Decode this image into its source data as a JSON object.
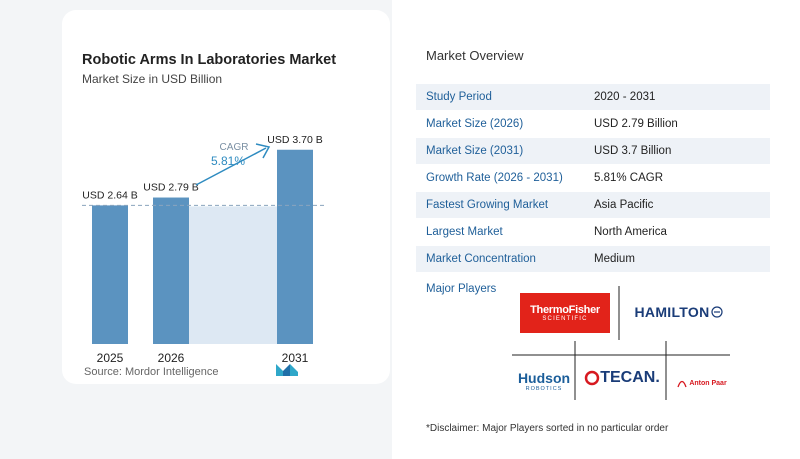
{
  "chart_data": {
    "type": "bar",
    "title": "Robotic Arms In Laboratories Market",
    "subtitle": "Market Size in USD Billion",
    "categories": [
      "2025",
      "2026",
      "2031"
    ],
    "values": [
      2.64,
      2.79,
      3.7
    ],
    "data_labels": [
      "USD 2.64 B",
      "USD 2.79 B",
      "USD 3.70 B"
    ],
    "annotation": {
      "label": "CAGR",
      "value": "5.81%"
    },
    "bar_color": "#5b93c0",
    "accent_color": "#2e8bc0"
  },
  "source": "Source:  Mordor Intelligence",
  "overview": {
    "title": "Market Overview",
    "rows": [
      {
        "label": "Study Period",
        "value": "2020 - 2031"
      },
      {
        "label": "Market Size (2026)",
        "value": "USD 2.79 Billion"
      },
      {
        "label": "Market Size (2031)",
        "value": "USD 3.7 Billion"
      },
      {
        "label": "Growth Rate (2026 - 2031)",
        "value": "5.81% CAGR"
      },
      {
        "label": "Fastest Growing Market",
        "value": "Asia Pacific"
      },
      {
        "label": "Largest Market",
        "value": "North America"
      },
      {
        "label": "Market Concentration",
        "value": "Medium"
      }
    ]
  },
  "players": {
    "title": "Major Players",
    "logos": [
      {
        "name": "ThermoFisher",
        "sub": "SCIENTIFIC"
      },
      {
        "name": "HAMILTON"
      },
      {
        "name": "Hudson",
        "sub": "ROBOTICS"
      },
      {
        "name": "TECAN."
      },
      {
        "name": "Anton Paar"
      }
    ]
  },
  "disclaimer": "*Disclaimer: Major Players sorted in no particular order"
}
